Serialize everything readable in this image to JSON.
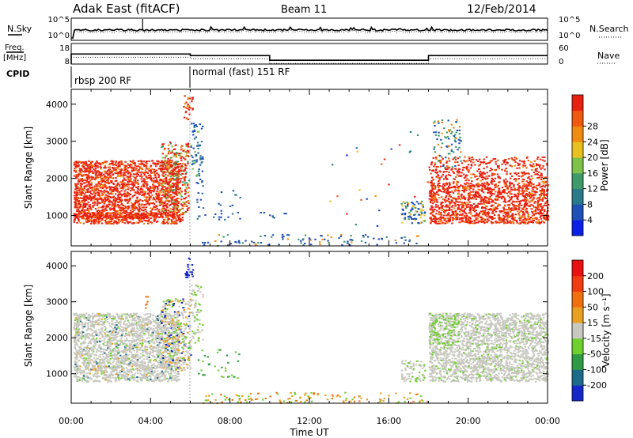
{
  "header": {
    "radar": "Adak East (fitACF)",
    "beam": "Beam 11",
    "date": "12/Feb/2014"
  },
  "noise_panel": {
    "left_label": "N.Sky",
    "right_label": "N.Search",
    "left_ticks": [
      "10^5",
      "10^0"
    ],
    "right_ticks": [
      "10^5",
      "10^0"
    ]
  },
  "freq_panel": {
    "left_label_1": "Freq.",
    "left_label_2": "[MHz]",
    "right_label": "Nave",
    "left_ticks": [
      "18",
      "8"
    ],
    "right_ticks": [
      "60",
      "0"
    ],
    "freq_segments_mhz": [
      {
        "start_h": 0.0,
        "end_h": 6.0,
        "value": 15.5
      },
      {
        "start_h": 6.0,
        "end_h": 10.0,
        "value": 14.3
      },
      {
        "start_h": 10.0,
        "end_h": 18.0,
        "value": 10.8
      },
      {
        "start_h": 18.0,
        "end_h": 24.0,
        "value": 14.3
      }
    ]
  },
  "cpid": {
    "label": "CPID",
    "segments": [
      {
        "start_h": 0.0,
        "end_h": 6.0,
        "text": "rbsp 200 RF"
      },
      {
        "start_h": 6.0,
        "end_h": 24.0,
        "text": "normal (fast) 151 RF"
      }
    ]
  },
  "chart_data": [
    {
      "type": "heatmap",
      "title": "",
      "xlabel": "Time UT",
      "ylabel": "Slant Range [km]",
      "xlim_hours": [
        0,
        24
      ],
      "ylim_km": [
        180,
        4400
      ],
      "x_ticks": [
        "00:00",
        "04:00",
        "08:00",
        "12:00",
        "16:00",
        "20:00",
        "00:00"
      ],
      "y_ticks": [
        "1000",
        "2000",
        "3000",
        "4000"
      ],
      "colorbar": {
        "label": "Power [dB]",
        "ticks": [
          "4",
          "8",
          "12",
          "16",
          "20",
          "24",
          "28"
        ],
        "colors": [
          "#0a20e8",
          "#1f4fb8",
          "#2b7a8c",
          "#3e9a6a",
          "#7ec24a",
          "#e8c020",
          "#f08a10",
          "#f05a10",
          "#e82010"
        ]
      }
    },
    {
      "type": "heatmap",
      "title": "",
      "xlabel": "Time UT",
      "ylabel": "Slant Range [km]",
      "xlim_hours": [
        0,
        24
      ],
      "ylim_km": [
        180,
        4400
      ],
      "x_ticks": [
        "00:00",
        "04:00",
        "08:00",
        "12:00",
        "16:00",
        "20:00",
        "00:00"
      ],
      "y_ticks": [
        "1000",
        "2000",
        "3000",
        "4000"
      ],
      "colorbar": {
        "label": "Velocity [m s⁻¹]",
        "ticks": [
          "200",
          "100",
          "50",
          "15",
          "-15",
          "-50",
          "-100",
          "-200"
        ],
        "colors": [
          "#1428c8",
          "#1e6a8a",
          "#2f9a46",
          "#6fcf2f",
          "#c8c8c0",
          "#e8a020",
          "#f07010",
          "#f03c10",
          "#e81010"
        ]
      }
    }
  ],
  "axis_title": "Time UT"
}
